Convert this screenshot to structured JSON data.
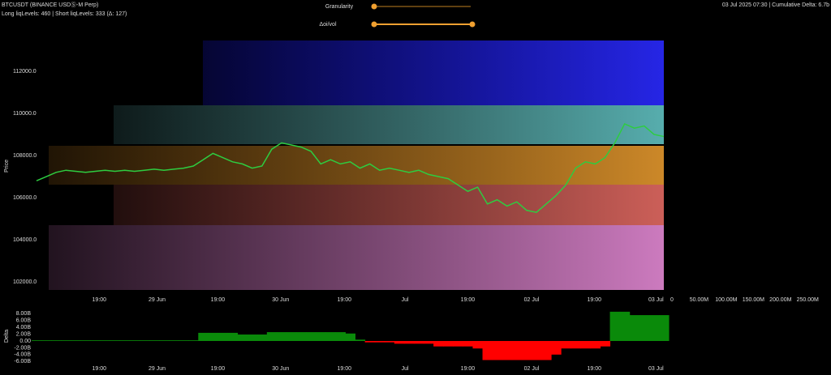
{
  "header": {
    "symbol": "BTCUSDT (BINANCE USDⓈ-M Perp)",
    "stats": "Long liqLevels: 460 | Short liqLevels: 333 (Δ: 127)",
    "info": "03 Jul 2025 07:30 | Cumulative Delta: 6.7b"
  },
  "controls": [
    {
      "label": "Granularity"
    },
    {
      "label": "Δoi/vol"
    }
  ],
  "chart_data": [
    {
      "type": "line",
      "y_label": "Price",
      "color": "#2ecc40",
      "xlim": [
        0,
        64
      ],
      "xticks": [
        {
          "value": 6.4,
          "label": "19:00"
        },
        {
          "value": 12.3,
          "label": "29 Jun"
        },
        {
          "value": 18.5,
          "label": "19:00"
        },
        {
          "value": 24.9,
          "label": "30 Jun"
        },
        {
          "value": 31.4,
          "label": "19:00"
        },
        {
          "value": 37.6,
          "label": "Jul"
        },
        {
          "value": 44,
          "label": "19:00"
        },
        {
          "value": 50.5,
          "label": "02 Jul"
        },
        {
          "value": 56.9,
          "label": "19:00"
        },
        {
          "value": 63.2,
          "label": "03 Jul"
        }
      ],
      "ylim": [
        101350,
        113650
      ],
      "yticks": [
        {
          "value": 102000,
          "label": "102000.0"
        },
        {
          "value": 104000,
          "label": "104000.0"
        },
        {
          "value": 106000,
          "label": "106000.0"
        },
        {
          "value": 108000,
          "label": "108000.0"
        },
        {
          "value": 110000,
          "label": "110000.0"
        },
        {
          "value": 112000,
          "label": "112000.0"
        }
      ],
      "x": [
        0,
        1,
        2,
        3,
        4,
        5,
        6,
        7,
        8,
        9,
        10,
        11,
        12,
        13,
        14,
        15,
        16,
        17,
        18,
        19,
        20,
        21,
        22,
        23,
        24,
        25,
        26,
        27,
        28,
        29,
        30,
        31,
        32,
        33,
        34,
        35,
        36,
        37,
        38,
        39,
        40,
        41,
        42,
        43,
        44,
        45,
        46,
        47,
        48,
        49,
        50,
        51,
        52,
        53,
        54,
        55,
        56,
        57,
        58,
        59,
        60,
        61,
        62,
        63,
        64
      ],
      "values": [
        106800,
        107000,
        107200,
        107300,
        107250,
        107200,
        107250,
        107300,
        107250,
        107300,
        107250,
        107300,
        107350,
        107300,
        107350,
        107400,
        107500,
        107800,
        108100,
        107900,
        107700,
        107600,
        107400,
        107500,
        108300,
        108600,
        108500,
        108400,
        108200,
        107600,
        107800,
        107600,
        107700,
        107400,
        107600,
        107300,
        107400,
        107300,
        107200,
        107300,
        107100,
        107000,
        106900,
        106600,
        106300,
        106500,
        105700,
        105900,
        105600,
        105800,
        105400,
        105300,
        105700,
        106100,
        106600,
        107400,
        107700,
        107600,
        107900,
        108600,
        109500,
        109300,
        109400,
        109000,
        108900
      ],
      "side_xlim": [
        0,
        287000000
      ],
      "side_xticks": [
        {
          "value": 0,
          "label": "0"
        },
        {
          "value": 50000000,
          "label": "50.00M"
        },
        {
          "value": 100000000,
          "label": "100.00M"
        },
        {
          "value": 150000000,
          "label": "150.00M"
        },
        {
          "value": 200000000,
          "label": "200.00M"
        },
        {
          "value": 250000000,
          "label": "250.00M"
        }
      ]
    },
    {
      "type": "bar",
      "y_label": "Delta",
      "xlim": [
        0,
        64
      ],
      "xticks": [
        {
          "value": 6.4,
          "label": "19:00"
        },
        {
          "value": 12.3,
          "label": "29 Jun"
        },
        {
          "value": 18.5,
          "label": "19:00"
        },
        {
          "value": 24.9,
          "label": "30 Jun"
        },
        {
          "value": 31.4,
          "label": "19:00"
        },
        {
          "value": 37.6,
          "label": "Jul"
        },
        {
          "value": 44,
          "label": "19:00"
        },
        {
          "value": 50.5,
          "label": "02 Jul"
        },
        {
          "value": 56.9,
          "label": "19:00"
        },
        {
          "value": 63.2,
          "label": "03 Jul"
        }
      ],
      "ylim": [
        -6.9,
        9.76
      ],
      "yticks": [
        {
          "value": 8,
          "label": "8.00B"
        },
        {
          "value": 6,
          "label": "6.00B"
        },
        {
          "value": 4,
          "label": "4.00B"
        },
        {
          "value": 2,
          "label": "2.00B"
        },
        {
          "value": 0,
          "label": "0.00"
        },
        {
          "value": -2,
          "label": "-2.00B"
        },
        {
          "value": -4,
          "label": "-4.00B"
        },
        {
          "value": -6,
          "label": "-6.00B"
        }
      ],
      "positive_color": "#0a8a0a",
      "negative_color": "#ff0000",
      "x": [
        0,
        1,
        2,
        3,
        4,
        5,
        6,
        7,
        8,
        9,
        10,
        11,
        12,
        13,
        14,
        15,
        16,
        17,
        18,
        19,
        20,
        21,
        22,
        23,
        24,
        25,
        26,
        27,
        28,
        29,
        30,
        31,
        32,
        33,
        34,
        35,
        36,
        37,
        38,
        39,
        40,
        41,
        42,
        43,
        44,
        45,
        46,
        47,
        48,
        49,
        50,
        51,
        52,
        53,
        54,
        55,
        56,
        57,
        58,
        59,
        60,
        61,
        62,
        63,
        64
      ],
      "values": [
        0.2,
        0.2,
        0.2,
        0.2,
        0.2,
        0.2,
        0.2,
        0.2,
        0.2,
        0.2,
        0.2,
        0.2,
        0.2,
        0.2,
        0.2,
        0.2,
        0.2,
        2.4,
        2.4,
        2.4,
        2.4,
        1.9,
        1.9,
        1.9,
        2.6,
        2.6,
        2.6,
        2.6,
        2.6,
        2.6,
        2.6,
        2.6,
        2.2,
        0.4,
        -0.4,
        -0.4,
        -0.4,
        -0.8,
        -0.8,
        -0.8,
        -0.8,
        -1.6,
        -1.6,
        -1.6,
        -1.6,
        -2.2,
        -5.6,
        -5.6,
        -5.6,
        -5.6,
        -5.6,
        -5.6,
        -5.6,
        -4,
        -2.2,
        -2.2,
        -2.2,
        -2.2,
        -1.6,
        8.6,
        8.6,
        7.6,
        7.6,
        7.6,
        7.6
      ]
    }
  ]
}
